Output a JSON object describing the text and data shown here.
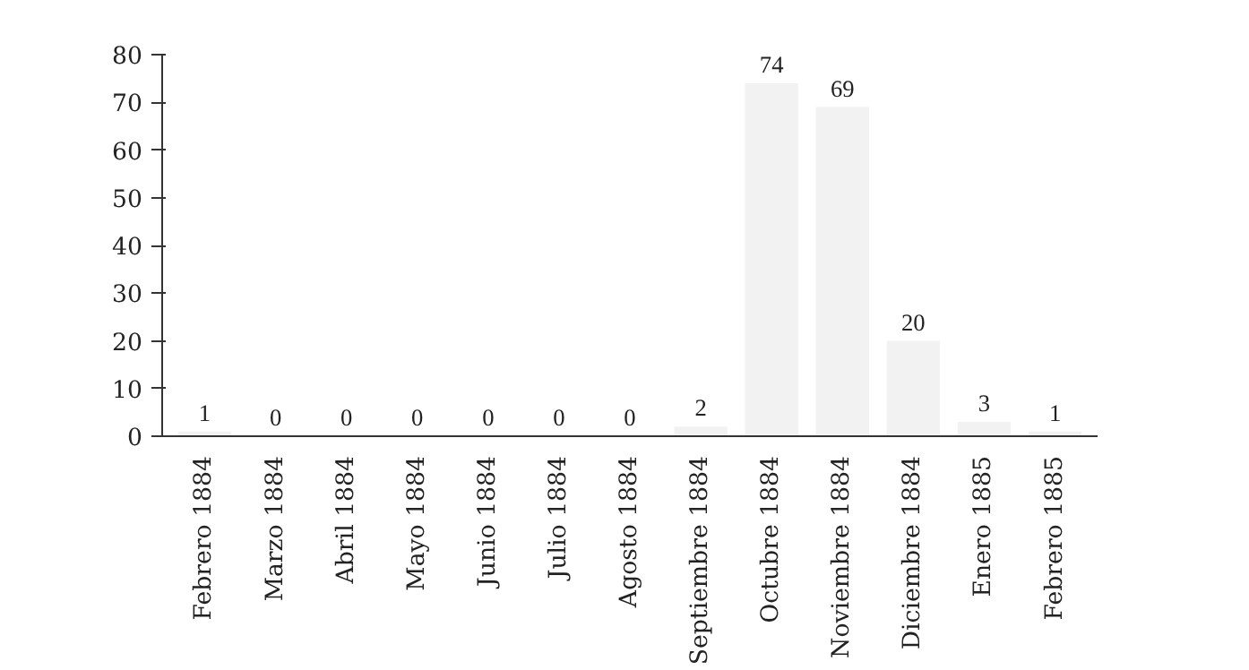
{
  "chart_data": {
    "type": "bar",
    "categories": [
      "Febrero 1884",
      "Marzo 1884",
      "Abril 1884",
      "Mayo 1884",
      "Junio 1884",
      "Julio 1884",
      "Agosto 1884",
      "Septiembre 1884",
      "Octubre 1884",
      "Noviembre 1884",
      "Diciembre 1884",
      "Enero 1885",
      "Febrero 1885"
    ],
    "values": [
      1,
      0,
      0,
      0,
      0,
      0,
      0,
      2,
      74,
      69,
      20,
      3,
      1
    ],
    "color": "#f2f2f2",
    "ylim": [
      0,
      80
    ],
    "yticks": [
      0,
      10,
      20,
      30,
      40,
      50,
      60,
      70,
      80
    ],
    "grid": false,
    "data_labels": true
  }
}
